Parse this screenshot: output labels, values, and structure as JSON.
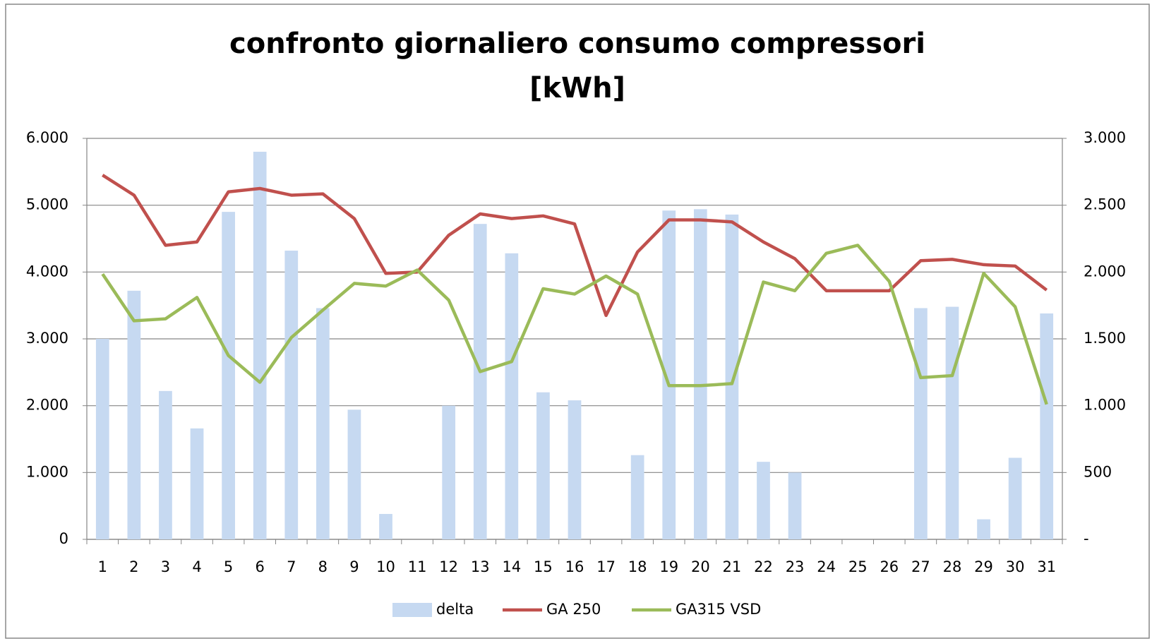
{
  "chart_data": {
    "type": "bar-line",
    "title": [
      "confronto giornaliero consumo compressori",
      "[kWh]"
    ],
    "categories": [
      "1",
      "2",
      "3",
      "4",
      "5",
      "6",
      "7",
      "8",
      "9",
      "10",
      "11",
      "12",
      "13",
      "14",
      "15",
      "16",
      "17",
      "18",
      "19",
      "20",
      "21",
      "22",
      "23",
      "24",
      "25",
      "26",
      "27",
      "28",
      "29",
      "30",
      "31"
    ],
    "series": [
      {
        "name": "delta",
        "type": "bar",
        "axis": "y2",
        "color": "#c6d9f1",
        "values": [
          1500,
          1860,
          1110,
          830,
          2450,
          2900,
          2160,
          1730,
          970,
          190,
          null,
          1000,
          2360,
          2140,
          1100,
          1040,
          null,
          630,
          2460,
          2470,
          2430,
          580,
          500,
          null,
          null,
          null,
          1730,
          1740,
          150,
          610,
          1690
        ]
      },
      {
        "name": "GA 250",
        "type": "line",
        "axis": "y",
        "color": "#c0504d",
        "values": [
          5450,
          5150,
          4400,
          4450,
          5200,
          5250,
          5150,
          5170,
          4800,
          3980,
          4000,
          4550,
          4870,
          4800,
          4840,
          4720,
          3350,
          4300,
          4780,
          4780,
          4750,
          4450,
          4200,
          3720,
          3720,
          3720,
          4170,
          4190,
          4110,
          4090,
          3730
        ]
      },
      {
        "name": "GA315 VSD",
        "type": "line",
        "axis": "y",
        "color": "#9bbb59",
        "values": [
          3970,
          3270,
          3300,
          3620,
          2750,
          2350,
          3020,
          3430,
          3830,
          3790,
          4030,
          3580,
          2510,
          2660,
          3750,
          3670,
          3940,
          3670,
          2300,
          2300,
          2330,
          3850,
          3720,
          4280,
          4400,
          3860,
          2420,
          2450,
          3980,
          3480,
          2020
        ]
      }
    ],
    "ylim": [
      0,
      6000
    ],
    "yticks": [
      0,
      {
        "value": 1000,
        "label": "1.000"
      },
      {
        "value": 2000,
        "label": "2.000"
      },
      {
        "value": 3000,
        "label": "3.000"
      },
      {
        "value": 4000,
        "label": "4.000"
      },
      {
        "value": 5000,
        "label": "5.000"
      },
      {
        "value": 6000,
        "label": "6.000"
      }
    ],
    "y2lim": [
      0,
      3000
    ],
    "y2ticks": [
      {
        "value": 0,
        "label": "-"
      },
      500,
      {
        "value": 1000,
        "label": "1.000"
      },
      {
        "value": 1500,
        "label": "1.500"
      },
      {
        "value": 2000,
        "label": "2.000"
      },
      {
        "value": 2500,
        "label": "2.500"
      },
      {
        "value": 3000,
        "label": "3.000"
      }
    ],
    "grid": true,
    "legend": "bottom"
  }
}
